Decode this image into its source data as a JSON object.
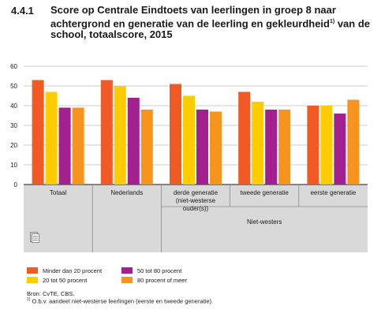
{
  "figure": {
    "number": "4.4.1",
    "title": "Score op Centrale Eindtoets van leerlingen in groep 8 naar achtergrond en generatie van de leerling en gekleurdheid",
    "title_sup": "1)",
    "title_rest": " van de school, totaalscore, 2015"
  },
  "chart_data": {
    "type": "bar",
    "categories": [
      "Totaal",
      "Nederlands",
      "derde generatie (niet-westerse ouder(s))",
      "tweede generatie",
      "eerste generatie"
    ],
    "category_lines": [
      [
        "Totaal"
      ],
      [
        "Nederlands"
      ],
      [
        "derde generatie",
        "(niet-westerse",
        "ouder(s))"
      ],
      [
        "tweede generatie"
      ],
      [
        "eerste generatie"
      ]
    ],
    "group_label": "Niet-westers",
    "series": [
      {
        "name": "Minder dan 20 procent",
        "color": "#f15a24",
        "values": [
          53,
          53,
          51,
          47,
          40
        ]
      },
      {
        "name": "20 tot 50 procent",
        "color": "#ffcc00",
        "values": [
          47,
          50,
          45,
          42,
          40
        ]
      },
      {
        "name": "50 tot 80 procent",
        "color": "#a3218e",
        "values": [
          39,
          44,
          38,
          38,
          36
        ]
      },
      {
        "name": "80 procent of meer",
        "color": "#f7941d",
        "values": [
          39,
          38,
          37,
          38,
          43
        ]
      }
    ],
    "y_ticks": [
      0,
      10,
      20,
      30,
      40,
      50,
      60
    ],
    "ylim": [
      0,
      60
    ],
    "grid": true,
    "legend_position": "bottom"
  },
  "source": "Bron: CvTE, CBS.",
  "footnote": {
    "marker": "1)",
    "text": "O.b.v. aandeel niet-westerse leerlingen (eerste en tweede generatie)."
  },
  "icons": [
    "document-icon"
  ]
}
